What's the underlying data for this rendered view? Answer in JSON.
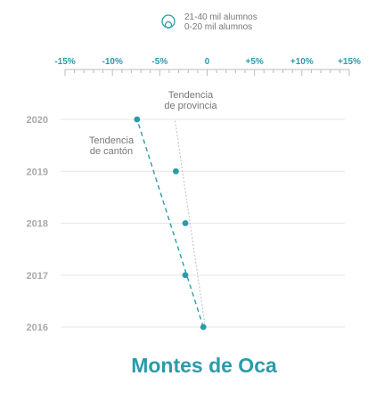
{
  "legend": {
    "large_label": "21-40 mil alumnos",
    "small_label": "0-20 mil alumnos"
  },
  "colors": {
    "accent": "#2a9bab",
    "axis_text": "#2a9bab",
    "year_text": "#aaaaaa",
    "gridline": "#e6e6e6",
    "annotation_text": "#777777",
    "province_line": "#c4c4c4",
    "legend_text": "#777777"
  },
  "chart_data": {
    "type": "line",
    "title": "Montes de Oca",
    "xlim": [
      -15,
      15
    ],
    "x_ticks": [
      -15,
      -10,
      -5,
      0,
      5,
      10,
      15
    ],
    "x_tick_labels": [
      "-15%",
      "-10%",
      "-5%",
      "0",
      "+5%",
      "+10%",
      "+15%"
    ],
    "years": [
      "2020",
      "2019",
      "2018",
      "2017",
      "2016"
    ],
    "series": [
      {
        "values": [
          {
            "year": "2020",
            "x": -7.4
          },
          {
            "year": "2019",
            "x": -3.3
          },
          {
            "year": "2018",
            "x": -2.3
          },
          {
            "year": "2017",
            "x": -2.3
          },
          {
            "year": "2016",
            "x": -0.4
          }
        ]
      }
    ],
    "trend_lines": [
      {
        "label": "Tendencia de cantón",
        "from": {
          "year": "2016",
          "x": -0.4
        },
        "to": {
          "year": "2020",
          "x": -7.4
        },
        "style": "dashed"
      },
      {
        "label": "Tendencia de provincia",
        "from": {
          "year": "2016",
          "x": -0.2
        },
        "to": {
          "year": "2020",
          "x": -3.4
        },
        "style": "dotted"
      }
    ],
    "annotations": [
      {
        "lines": [
          "Tendencia",
          "de cantón"
        ]
      },
      {
        "lines": [
          "Tendencia",
          "de provincia"
        ]
      }
    ],
    "marker_size": "small",
    "grid": true
  }
}
